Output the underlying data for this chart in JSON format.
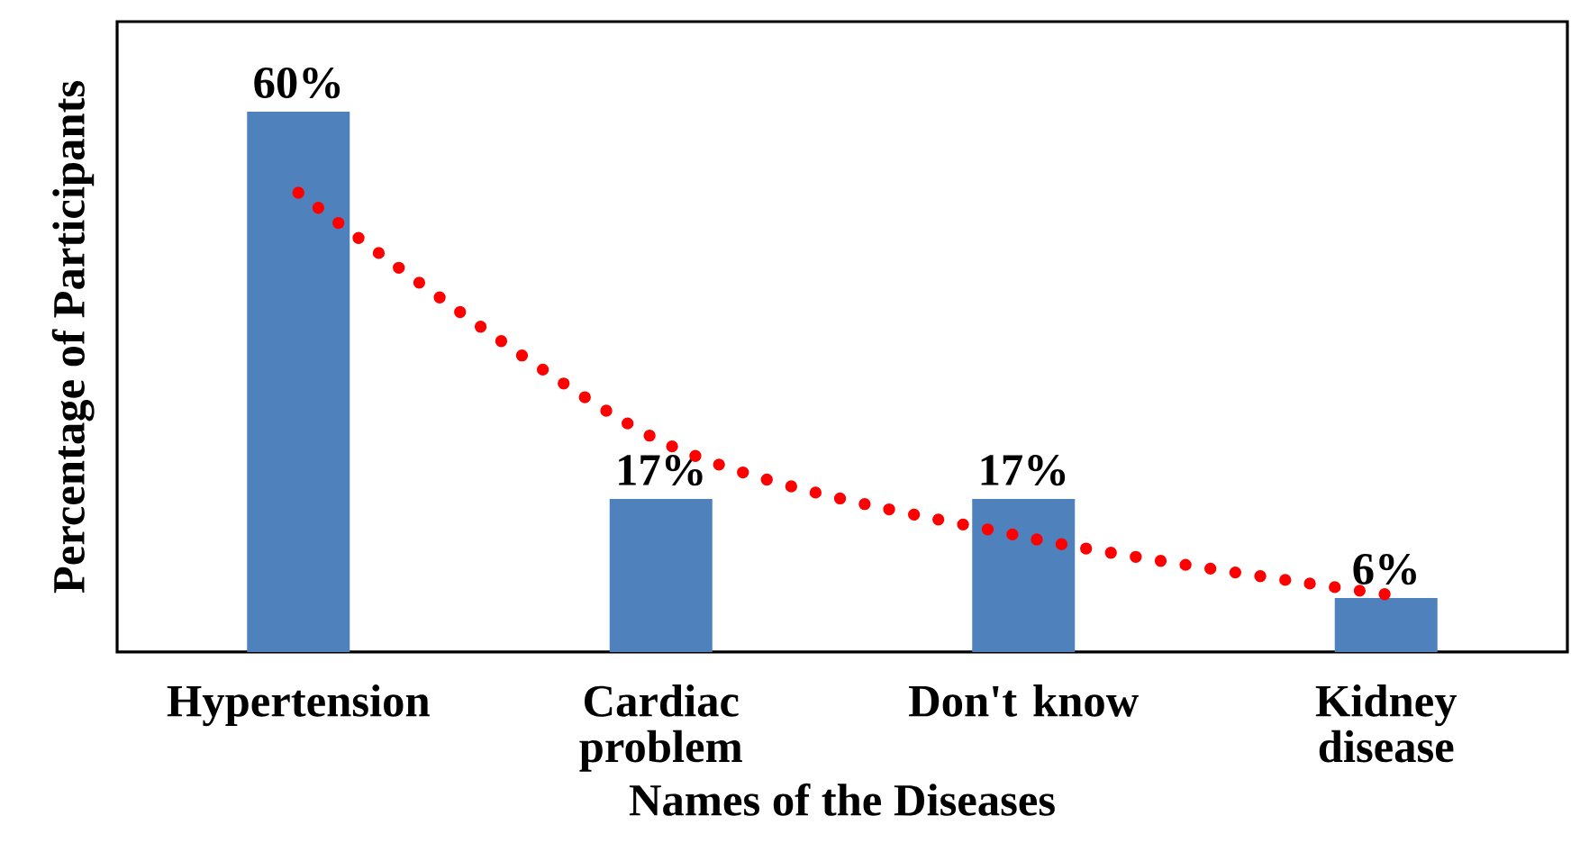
{
  "chart_data": {
    "type": "bar",
    "xlabel": "Names of the Diseases",
    "ylabel": "Percentage of Participants",
    "categories": [
      "Hypertension",
      "Cardiac problem",
      "Don't know",
      "Kidney disease"
    ],
    "ylim": [
      0,
      70
    ],
    "series": [
      {
        "color": "#4f81bd",
        "values": [
          60,
          17,
          17,
          6
        ],
        "value_labels": [
          "60%",
          "17%",
          "17%",
          "6%"
        ]
      },
      {
        "type": "line",
        "color": "#ff0000",
        "line_style": "dotted",
        "values": [
          51,
          23.4,
          12.8,
          6.4
        ]
      }
    ]
  }
}
